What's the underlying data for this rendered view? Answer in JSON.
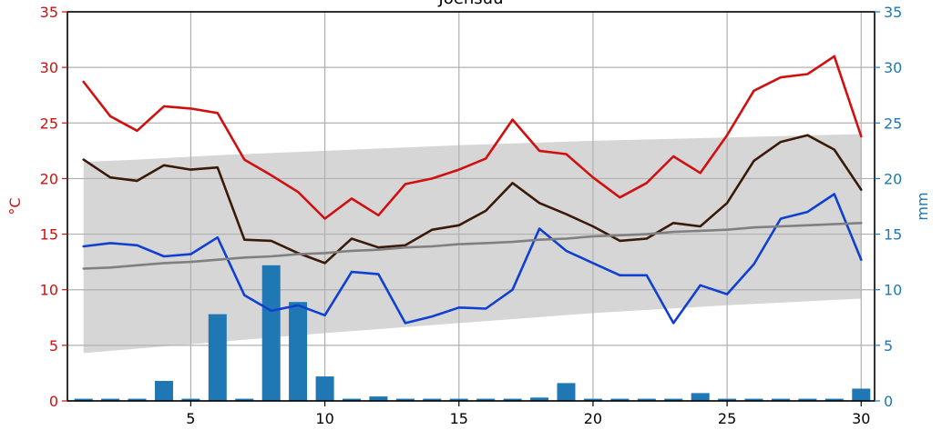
{
  "chart_data": {
    "type": "line",
    "title": "Joensuu",
    "xlabel": "",
    "ylabel_left": "°C",
    "ylabel_right": "mm",
    "xlim": [
      0.4,
      30.5
    ],
    "ylim_left": [
      0,
      35
    ],
    "ylim_right": [
      0,
      35
    ],
    "x_ticks": [
      5,
      10,
      15,
      20,
      25,
      30
    ],
    "y_ticks": [
      0,
      5,
      10,
      15,
      20,
      25,
      30,
      35
    ],
    "grid": true,
    "legend": "none",
    "colors": {
      "max": "#d01010",
      "mean": "#3a1a08",
      "min": "#1040d0",
      "normal": "#808080",
      "band": "#d6d6d6",
      "precip": "#1f77b4",
      "left_axis": "#d01010",
      "right_axis": "#1f77b4"
    },
    "x": [
      1,
      2,
      3,
      4,
      5,
      6,
      7,
      8,
      9,
      10,
      11,
      12,
      13,
      14,
      15,
      16,
      17,
      18,
      19,
      20,
      21,
      22,
      23,
      24,
      25,
      26,
      27,
      28,
      29,
      30
    ],
    "series": [
      {
        "key": "max",
        "values": [
          28.7,
          25.6,
          24.3,
          26.5,
          26.3,
          25.9,
          21.7,
          20.3,
          18.8,
          16.4,
          18.2,
          16.7,
          19.5,
          20.0,
          20.8,
          21.8,
          25.3,
          22.5,
          22.2,
          20.1,
          18.3,
          19.6,
          22.0,
          20.5,
          23.9,
          27.9,
          29.1,
          29.4,
          31.0,
          23.8
        ]
      },
      {
        "key": "mean",
        "values": [
          21.7,
          20.1,
          19.8,
          21.2,
          20.8,
          21.0,
          14.5,
          14.4,
          13.3,
          12.4,
          14.6,
          13.8,
          14.0,
          15.4,
          15.8,
          17.1,
          19.6,
          17.8,
          16.8,
          15.7,
          14.4,
          14.6,
          16.0,
          15.7,
          17.8,
          21.6,
          23.3,
          23.9,
          22.6,
          19.0
        ]
      },
      {
        "key": "min",
        "values": [
          13.9,
          14.2,
          14.0,
          13.0,
          13.2,
          14.7,
          9.5,
          8.1,
          8.6,
          7.7,
          11.6,
          11.4,
          7.0,
          7.6,
          8.4,
          8.3,
          10.0,
          15.5,
          13.5,
          12.4,
          11.3,
          11.3,
          7.0,
          10.4,
          9.6,
          12.3,
          16.4,
          17.0,
          18.6,
          12.7
        ]
      },
      {
        "key": "normal",
        "values": [
          11.9,
          12.0,
          12.2,
          12.4,
          12.5,
          12.7,
          12.9,
          13.0,
          13.2,
          13.3,
          13.5,
          13.6,
          13.8,
          13.9,
          14.1,
          14.2,
          14.3,
          14.5,
          14.6,
          14.8,
          14.9,
          15.0,
          15.2,
          15.3,
          15.4,
          15.6,
          15.7,
          15.8,
          15.9,
          16.0
        ]
      }
    ],
    "band": {
      "x": [
        1,
        3,
        6,
        10,
        15,
        20,
        25,
        30
      ],
      "upper": [
        21.5,
        21.7,
        22.1,
        22.5,
        23.0,
        23.4,
        23.7,
        24.0
      ],
      "lower": [
        4.3,
        4.7,
        5.3,
        6.1,
        7.0,
        7.9,
        8.6,
        9.2
      ]
    },
    "precipitation": [
      0.2,
      0.2,
      0.2,
      1.8,
      0.2,
      7.8,
      0.2,
      12.2,
      8.9,
      2.2,
      0.2,
      0.4,
      0.2,
      0.2,
      0.2,
      0.2,
      0.2,
      0.3,
      1.6,
      0.2,
      0.2,
      0.2,
      0.2,
      0.7,
      0.2,
      0.2,
      0.2,
      0.2,
      0.2,
      1.1
    ]
  }
}
